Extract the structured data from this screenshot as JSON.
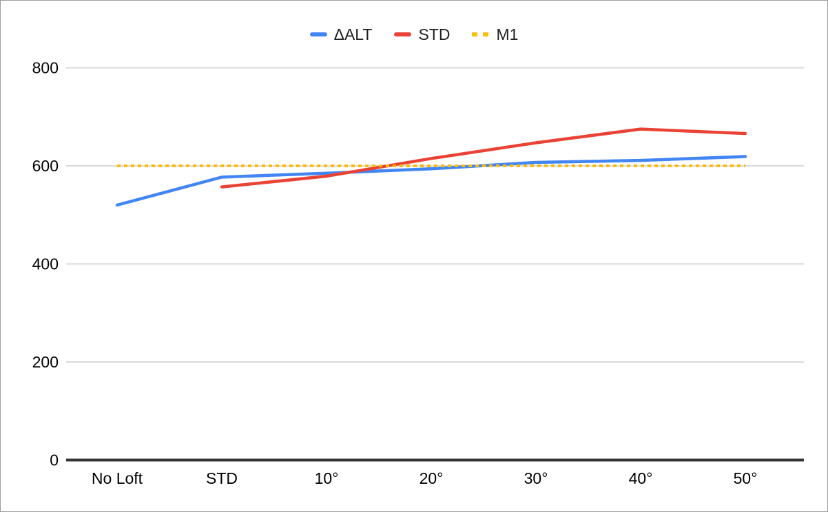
{
  "chart_data": {
    "type": "line",
    "categories": [
      "No Loft",
      "STD",
      "10°",
      "20°",
      "30°",
      "40°",
      "50°"
    ],
    "series": [
      {
        "name": "ΔALT",
        "color": "#4285F4",
        "line_style": "solid",
        "values": [
          520,
          577,
          585,
          594,
          607,
          611,
          619
        ]
      },
      {
        "name": "STD",
        "color": "#EA4335",
        "line_style": "solid",
        "values": [
          null,
          557,
          579,
          615,
          647,
          675,
          666
        ]
      },
      {
        "name": "M1",
        "color": "#FBBC04",
        "line_style": "dotted",
        "values": [
          600,
          600,
          600,
          600,
          600,
          600,
          600
        ]
      }
    ],
    "title": "",
    "xlabel": "",
    "ylabel": "",
    "ylim": [
      0,
      800
    ],
    "yticks": [
      0,
      200,
      400,
      600,
      800
    ],
    "grid": true,
    "legend_position": "top"
  },
  "colors": {
    "background": "#ffffff",
    "frame_border": "#9e9e9e",
    "gridline": "#d9d9d9",
    "axis_line": "#333333",
    "tick_text": "#000000",
    "legend_text": "#1f1f1f"
  }
}
